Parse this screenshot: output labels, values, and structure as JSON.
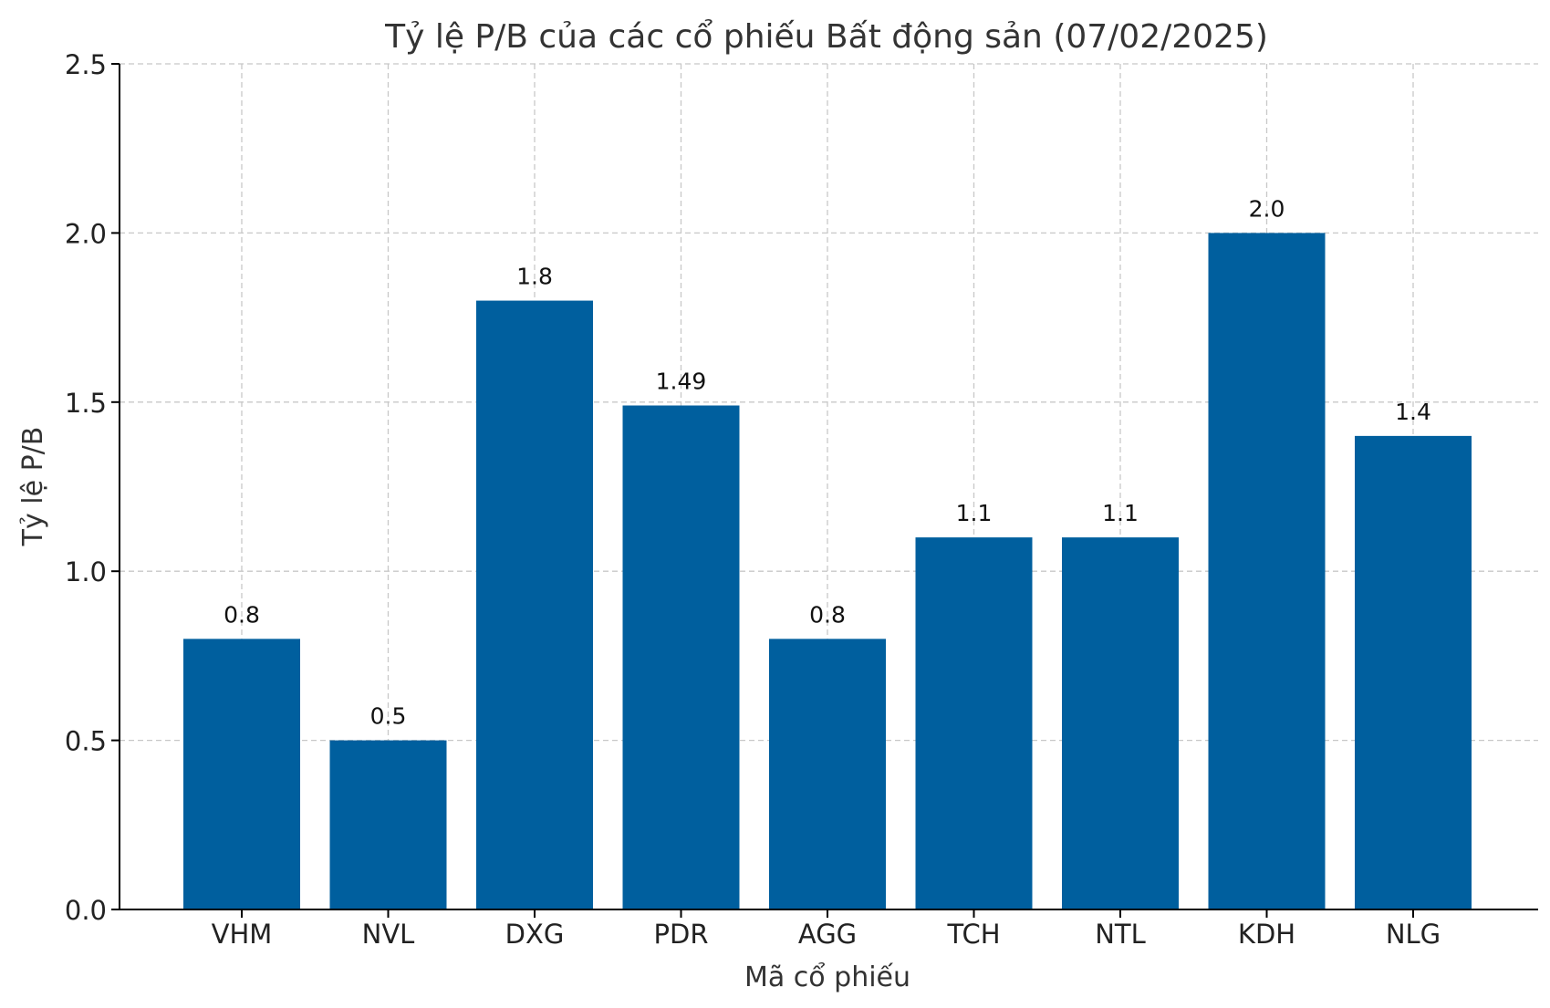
{
  "chart_data": {
    "type": "bar",
    "title": "Tỷ lệ P/B của các cổ phiếu Bất động sản (07/02/2025)",
    "xlabel": "Mã cổ phiếu",
    "ylabel": "Tỷ lệ P/B",
    "categories": [
      "VHM",
      "NVL",
      "DXG",
      "PDR",
      "AGG",
      "TCH",
      "NTL",
      "KDH",
      "NLG"
    ],
    "values": [
      0.8,
      0.5,
      1.8,
      1.49,
      0.8,
      1.1,
      1.1,
      2.0,
      1.4
    ],
    "value_labels": [
      "0.8",
      "0.5",
      "1.8",
      "1.49",
      "0.8",
      "1.1",
      "1.1",
      "2.0",
      "1.4"
    ],
    "ylim": [
      0,
      2.5
    ],
    "yticks": [
      "0.0",
      "0.5",
      "1.0",
      "1.5",
      "2.0",
      "2.5"
    ],
    "grid": true,
    "bar_color": "#005f9e"
  }
}
